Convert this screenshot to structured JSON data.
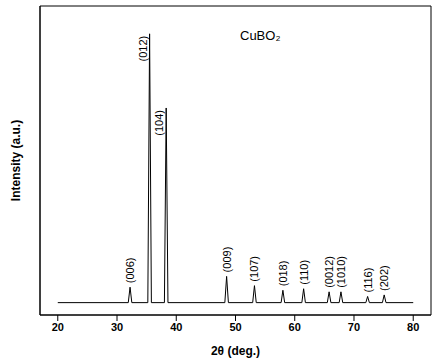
{
  "chart_data": {
    "type": "line",
    "title": "CuBO₂",
    "xlabel": "2θ (deg.)",
    "ylabel": "Intensity (a.u.)",
    "x": [
      20,
      31.9,
      32.2,
      32.5,
      35.2,
      35.5,
      35.8,
      38.0,
      38.3,
      38.6,
      48.2,
      48.5,
      48.8,
      52.9,
      53.2,
      53.5,
      57.7,
      58.0,
      58.3,
      61.2,
      61.5,
      61.8,
      65.5,
      65.8,
      66.1,
      67.5,
      67.8,
      68.1,
      72.0,
      72.3,
      72.6,
      74.8,
      75.1,
      75.4,
      80
    ],
    "values": [
      4,
      4,
      9,
      4,
      4,
      91,
      4,
      4,
      67,
      4,
      4,
      12.5,
      4,
      4,
      9.5,
      4,
      4,
      8,
      4,
      4,
      8.5,
      4,
      4,
      7.5,
      4,
      4,
      7.5,
      4,
      4,
      6,
      4,
      4,
      6.5,
      4,
      4
    ],
    "color": "#000000",
    "xlim": [
      17,
      83
    ],
    "ylim": [
      0,
      100
    ],
    "xticks": [
      20,
      30,
      40,
      50,
      60,
      70,
      80
    ],
    "tick_labels": "x",
    "grid": false,
    "annotations": [
      {
        "text": "(006)",
        "x": 32.2
      },
      {
        "text": "(012)",
        "x": 35.5
      },
      {
        "text": "(104)",
        "x": 38.3
      },
      {
        "text": "(009)",
        "x": 48.5
      },
      {
        "text": "(107)",
        "x": 53.2
      },
      {
        "text": "(018)",
        "x": 58.0
      },
      {
        "text": "(110)",
        "x": 61.5
      },
      {
        "text": "(0012)",
        "x": 65.8
      },
      {
        "text": "(1010)",
        "x": 67.8
      },
      {
        "text": "(116)",
        "x": 72.3
      },
      {
        "text": "(202)",
        "x": 75.1
      }
    ]
  }
}
